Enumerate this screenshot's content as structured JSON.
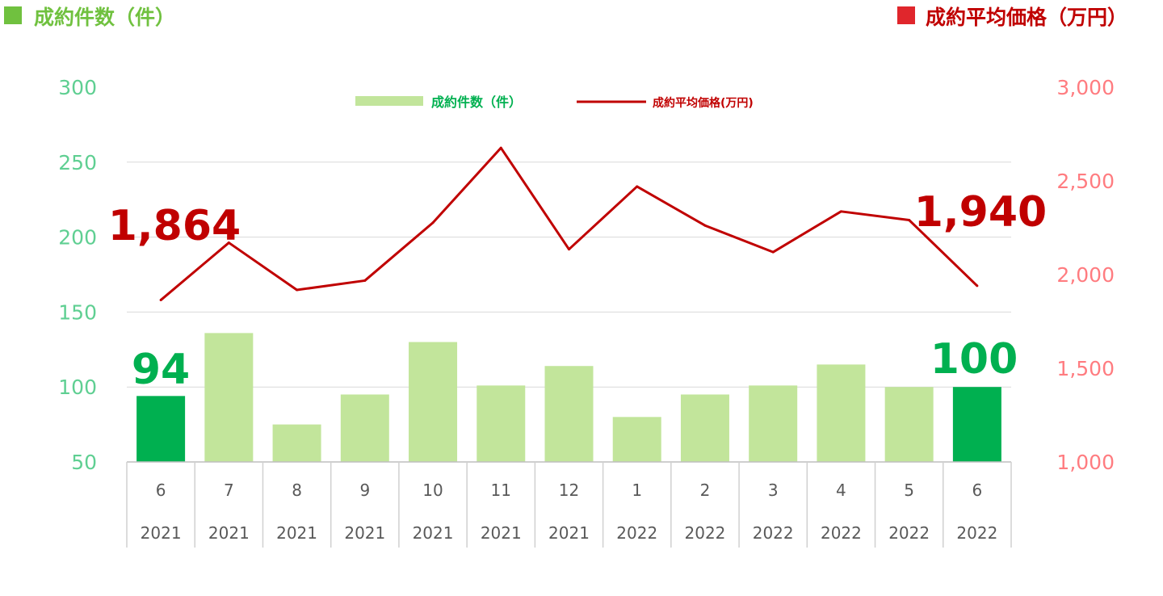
{
  "header": {
    "left_title": "成約件数（件）",
    "right_title": "成約平均価格（万円）"
  },
  "colors": {
    "bar_light": "#c2e59b",
    "bar_highlight": "#00b050",
    "line": "#c00000",
    "left_axis_text": "#5fcf92",
    "right_axis_text": "#ff7c80",
    "header_left_square": "#70c13f",
    "header_left_text": "#70c13f",
    "header_right_square": "#e0262c",
    "header_right_text": "#c00000"
  },
  "chart_data": {
    "type": "bar",
    "categories": [
      "6",
      "7",
      "8",
      "9",
      "10",
      "11",
      "12",
      "1",
      "2",
      "3",
      "4",
      "5",
      "6"
    ],
    "years": [
      "2021",
      "2021",
      "2021",
      "2021",
      "2021",
      "2021",
      "2021",
      "2022",
      "2022",
      "2022",
      "2022",
      "2022",
      "2022"
    ],
    "series": [
      {
        "name": "成約件数（件）",
        "type": "bar",
        "axis": "left",
        "values": [
          94,
          136,
          75,
          95,
          130,
          101,
          114,
          80,
          95,
          101,
          115,
          100,
          100
        ],
        "highlight_indices": [
          0,
          12
        ]
      },
      {
        "name": "成約平均価格(万円)",
        "type": "line",
        "axis": "right",
        "values": [
          1864,
          2170,
          1918,
          1968,
          2277,
          2676,
          2135,
          2470,
          2262,
          2120,
          2337,
          2291,
          1940
        ]
      }
    ],
    "y_left": {
      "ticks": [
        "300",
        "250",
        "200",
        "150",
        "100",
        "50"
      ],
      "ylim": [
        50,
        300
      ]
    },
    "y_right": {
      "ticks": [
        "3,000",
        "2,500",
        "2,000",
        "1,500",
        "1,000"
      ],
      "ylim": [
        1000,
        3000
      ]
    },
    "annotations": {
      "first_bar": "94",
      "last_bar": "100",
      "first_line": "1,864",
      "last_line": "1,940"
    },
    "legend_position": "top-center",
    "grid": true
  }
}
